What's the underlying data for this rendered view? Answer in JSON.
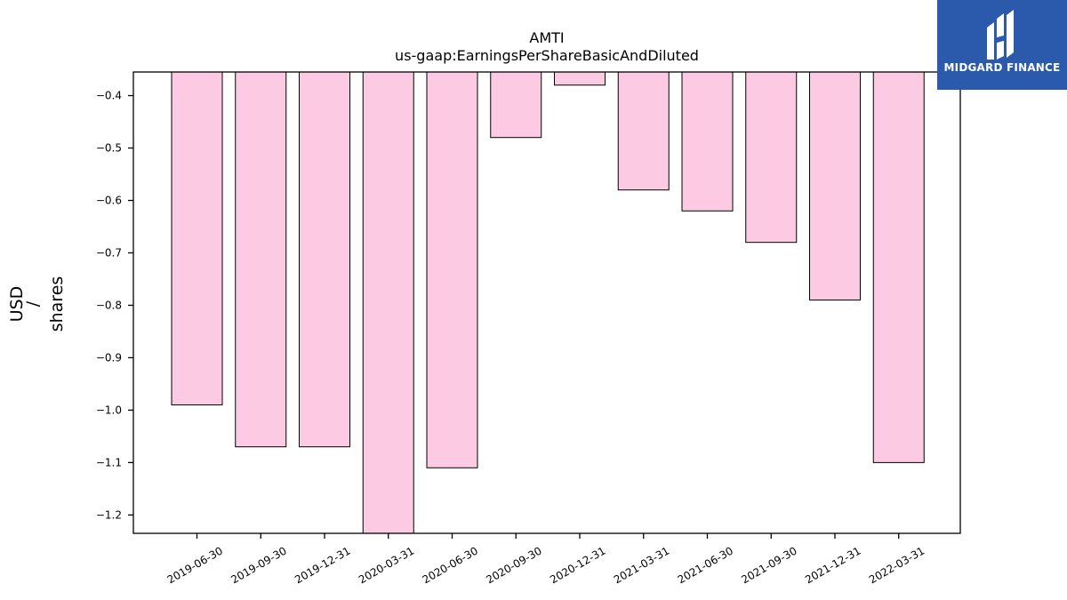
{
  "chart_data": {
    "type": "bar",
    "title": "AMTI",
    "subtitle": "us-gaap:EarningsPerShareBasicAndDiluted",
    "ylabel_lines": [
      "USD",
      "/",
      "shares"
    ],
    "xlabel": "",
    "categories": [
      "2019-06-30",
      "2019-09-30",
      "2019-12-31",
      "2020-03-31",
      "2020-06-30",
      "2020-09-30",
      "2020-12-31",
      "2021-03-31",
      "2021-06-30",
      "2021-09-30",
      "2021-12-31",
      "2022-03-31"
    ],
    "values": [
      -0.99,
      -1.07,
      -1.07,
      -1.24,
      -1.11,
      -0.48,
      -0.38,
      -0.58,
      -0.62,
      -0.68,
      -0.79,
      -1.1
    ],
    "ylim": [
      -1.235,
      -0.355
    ],
    "yticks": [
      -0.4,
      -0.5,
      -0.6,
      -0.7,
      -0.8,
      -0.9,
      -1.0,
      -1.1,
      -1.2
    ],
    "ytick_labels": [
      "−0.4",
      "−0.5",
      "−0.6",
      "−0.7",
      "−0.8",
      "−0.9",
      "−1.0",
      "−1.1",
      "−1.2"
    ],
    "bar_color": "#fccae2",
    "bar_edge_color": "#000000",
    "grid": false,
    "legend": "none"
  },
  "logo": {
    "text": "MIDGARD FINANCE",
    "bg_color": "#2b5aad"
  }
}
